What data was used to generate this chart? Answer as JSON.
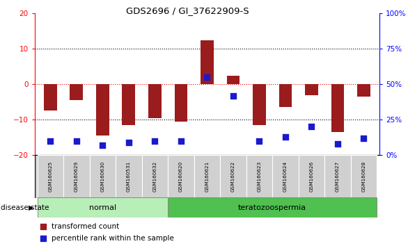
{
  "title": "GDS2696 / GI_37622909-S",
  "samples": [
    "GSM160625",
    "GSM160629",
    "GSM160630",
    "GSM160531",
    "GSM160632",
    "GSM160620",
    "GSM160621",
    "GSM160622",
    "GSM160623",
    "GSM160624",
    "GSM160626",
    "GSM160627",
    "GSM160628"
  ],
  "transformed_count": [
    -7.5,
    -4.5,
    -14.5,
    -11.5,
    -9.5,
    -10.5,
    12.5,
    2.5,
    -11.5,
    -6.5,
    -3.0,
    -13.5,
    -3.5
  ],
  "percentile_rank": [
    10,
    10,
    7,
    9,
    10,
    10,
    55,
    42,
    10,
    13,
    20,
    8,
    12
  ],
  "disease_state": [
    "normal",
    "normal",
    "normal",
    "normal",
    "normal",
    "teratozoospermia",
    "teratozoospermia",
    "teratozoospermia",
    "teratozoospermia",
    "teratozoospermia",
    "teratozoospermia",
    "teratozoospermia",
    "teratozoospermia"
  ],
  "normal_color": "#B8EEB8",
  "terato_color": "#50C050",
  "bar_color": "#9B1C1C",
  "dot_color": "#1A1ACD",
  "ylim_left": [
    -20,
    20
  ],
  "ylim_right": [
    0,
    100
  ],
  "yticks_left": [
    -20,
    -10,
    0,
    10,
    20
  ],
  "yticks_right": [
    0,
    25,
    50,
    75,
    100
  ],
  "legend_tc": "transformed count",
  "legend_pr": "percentile rank within the sample",
  "label_disease": "disease state",
  "background_color": "#FFFFFF"
}
